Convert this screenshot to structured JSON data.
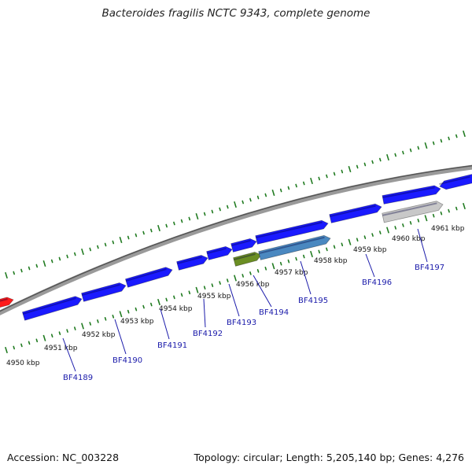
{
  "title": "Bacteroides fragilis NCTC 9343, complete genome",
  "footer": {
    "accession": "Accession: NC_003228",
    "summary": "Topology: circular; Length: 5,205,140 bp; Genes: 4,276"
  },
  "colors": {
    "forward_gene": "#1a1aff",
    "reverse_gene": "#1a1aff",
    "highlight_green": "#6b8e23",
    "highlight_blue": "#4a88c0",
    "pseudo_gray": "#c8c8c8",
    "red_gene": "#ff1a1a",
    "tick_green": "#1f7a1f",
    "label_blue": "#1a1aaa"
  },
  "kbp_labels": [
    "4950 kbp",
    "4951 kbp",
    "4952 kbp",
    "4953 kbp",
    "4954 kbp",
    "4955 kbp",
    "4956 kbp",
    "4957 kbp",
    "4958 kbp",
    "4959 kbp",
    "4960 kbp",
    "4961 kbp"
  ],
  "gene_labels": [
    "BF4189",
    "BF4190",
    "BF4191",
    "BF4192",
    "BF4193",
    "BF4194",
    "BF4195",
    "BF4196",
    "BF4197"
  ]
}
